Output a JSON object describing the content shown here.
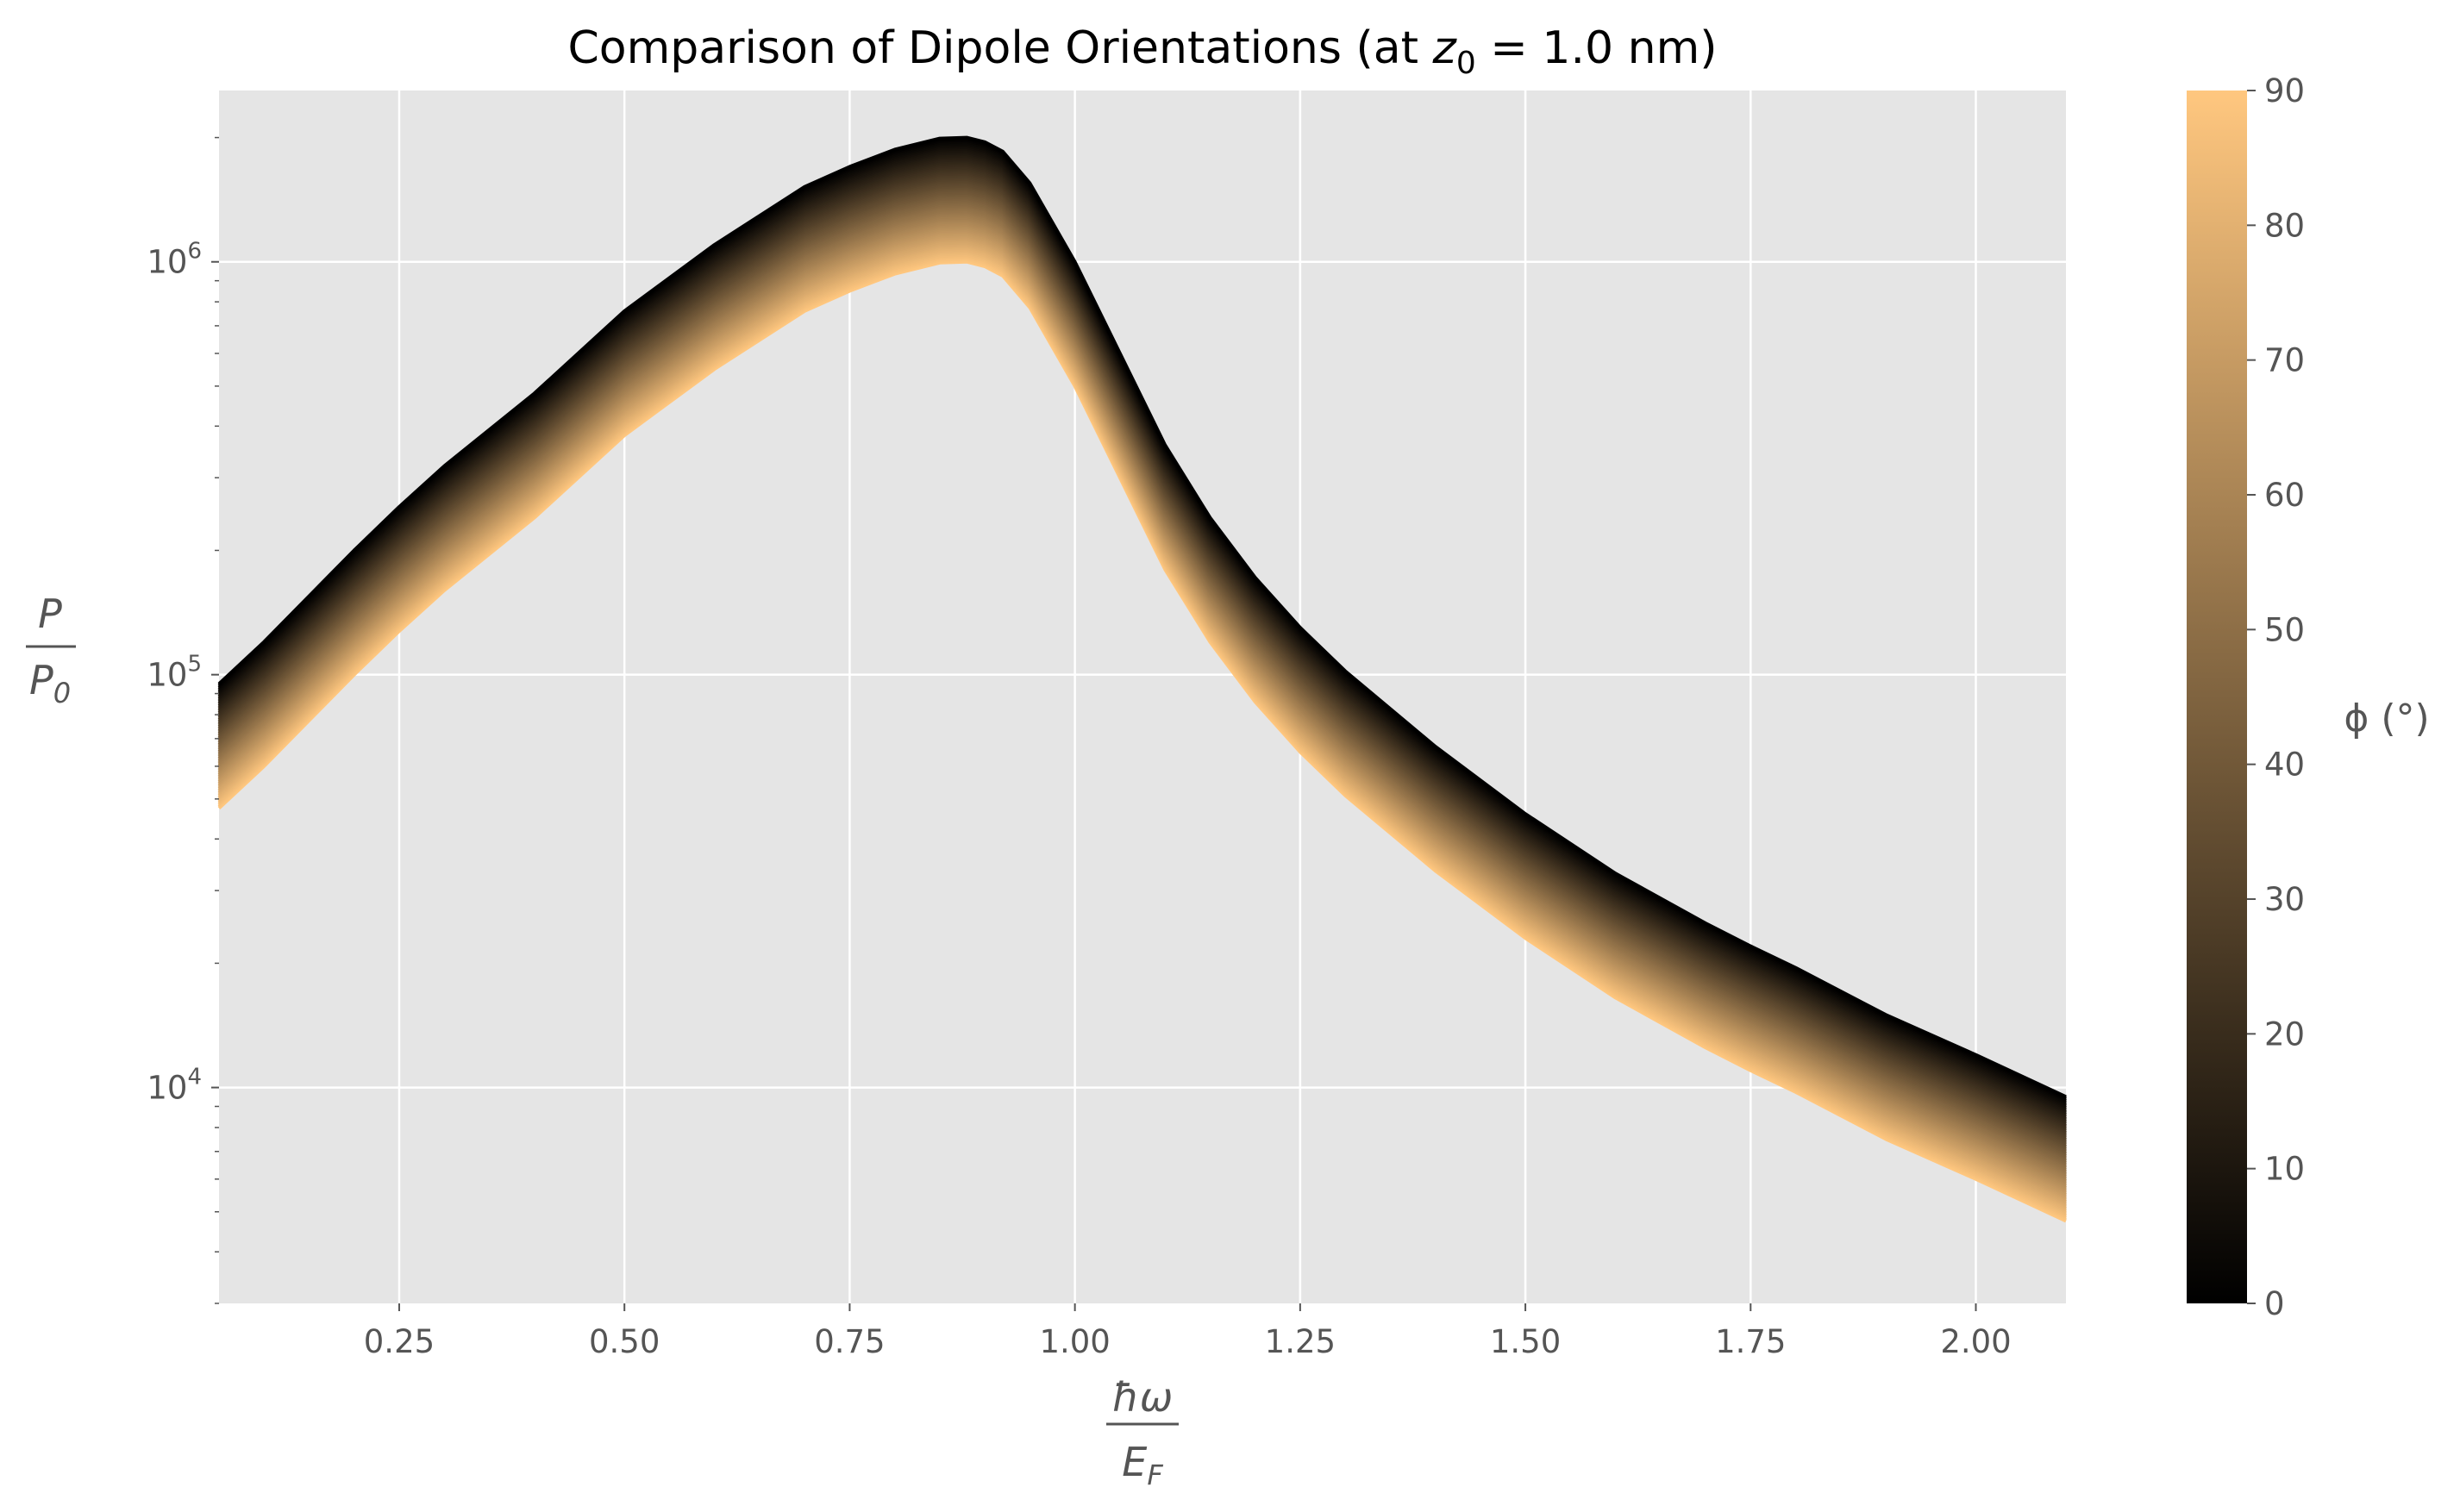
{
  "chart_data": {
    "type": "line",
    "title_prefix": "Comparison of Dipole Orientations (at ",
    "title_var": "z",
    "title_sub": "0",
    "title_suffix": " = 1.0 nm)",
    "x_label_num": "ħω",
    "x_label_den_main": "E",
    "x_label_den_sub": "F",
    "y_label_num": "P",
    "y_label_den_main": "P",
    "y_label_den_sub": "0",
    "x_scale": "linear",
    "y_scale": "log",
    "xlim": [
      0.05,
      2.1
    ],
    "ylim": [
      3000,
      2600000
    ],
    "x_ticks": [
      0.25,
      0.5,
      0.75,
      1.0,
      1.25,
      1.5,
      1.75,
      2.0
    ],
    "x_tick_labels": [
      "0.25",
      "0.50",
      "0.75",
      "1.00",
      "1.25",
      "1.50",
      "1.75",
      "2.00"
    ],
    "y_ticks": [
      10000,
      100000,
      1000000
    ],
    "y_tick_base": "10",
    "y_tick_exponents": [
      "4",
      "5",
      "6"
    ],
    "grid": true,
    "background": "#e5e5e5",
    "grid_color": "#ffffff",
    "colormap": "copper",
    "colormap_stops": [
      "#000000",
      "#ffc77f"
    ],
    "colorbar": {
      "label": "ϕ (°)",
      "range": [
        0,
        90
      ],
      "ticks": [
        0,
        10,
        20,
        30,
        40,
        50,
        60,
        70,
        80,
        90
      ],
      "tick_labels": [
        "0",
        "10",
        "20",
        "30",
        "40",
        "50",
        "60",
        "70",
        "80",
        "90"
      ]
    },
    "series_parameter": "phi_deg",
    "phi_values": [
      0,
      9,
      18,
      27,
      36,
      45,
      54,
      63,
      72,
      81,
      90
    ],
    "x": [
      0.05,
      0.1,
      0.15,
      0.2,
      0.25,
      0.3,
      0.4,
      0.5,
      0.6,
      0.7,
      0.75,
      0.8,
      0.85,
      0.88,
      0.9,
      0.92,
      0.95,
      1.0,
      1.05,
      1.1,
      1.15,
      1.2,
      1.25,
      1.3,
      1.4,
      1.5,
      1.6,
      1.7,
      1.75,
      1.8,
      1.9,
      2.0,
      2.1
    ],
    "y_phi_0": [
      95000,
      120000,
      155000,
      200000,
      255000,
      320000,
      480000,
      760000,
      1100000,
      1520000,
      1700000,
      1870000,
      1990000,
      2000000,
      1950000,
      1850000,
      1550000,
      1000000,
      600000,
      360000,
      240000,
      172000,
      130000,
      102000,
      67000,
      46000,
      33000,
      25000,
      22000,
      19500,
      15000,
      12000,
      9500
    ],
    "y_phi_90": [
      47500,
      60000,
      77500,
      100000,
      127500,
      160000,
      240000,
      380000,
      550000,
      760000,
      850000,
      935000,
      995000,
      1000000,
      975000,
      925000,
      775000,
      500000,
      300000,
      180000,
      120000,
      86000,
      65000,
      51000,
      33500,
      23000,
      16500,
      12500,
      11000,
      9750,
      7500,
      6000,
      4750
    ]
  }
}
